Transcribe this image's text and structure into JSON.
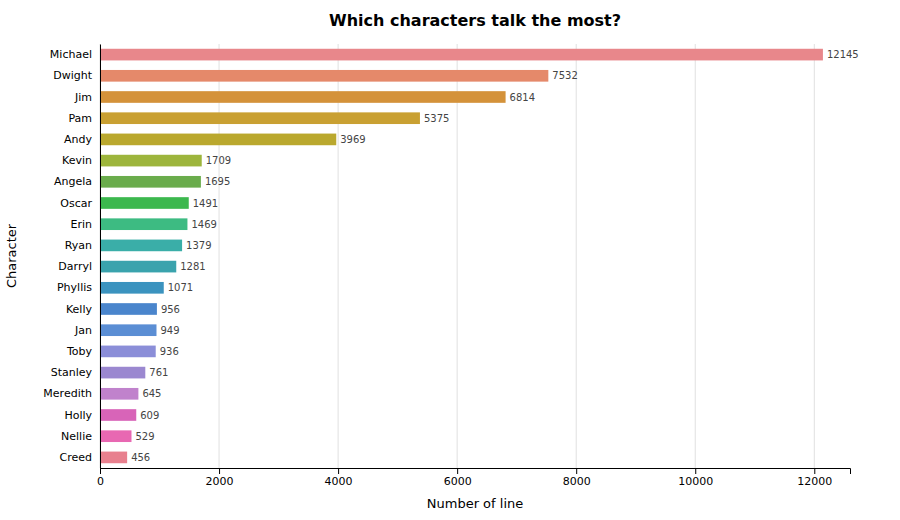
{
  "chart_data": {
    "type": "bar",
    "orientation": "horizontal",
    "title": "Which characters talk the most?",
    "xlabel": "Number of line",
    "ylabel": "Character",
    "categories": [
      "Michael",
      "Dwight",
      "Jim",
      "Pam",
      "Andy",
      "Kevin",
      "Angela",
      "Oscar",
      "Erin",
      "Ryan",
      "Darryl",
      "Phyllis",
      "Kelly",
      "Jan",
      "Toby",
      "Stanley",
      "Meredith",
      "Holly",
      "Nellie",
      "Creed"
    ],
    "values": [
      12145,
      7532,
      6814,
      5375,
      3969,
      1709,
      1695,
      1491,
      1469,
      1379,
      1281,
      1071,
      956,
      949,
      936,
      761,
      645,
      609,
      529,
      456
    ],
    "colors": [
      "#E8878B",
      "#E5896A",
      "#D4923A",
      "#C9A032",
      "#BAA82E",
      "#9DB53C",
      "#6AAC4C",
      "#3CB84E",
      "#3DBB82",
      "#3AAEA8",
      "#3AA3AD",
      "#3B93BF",
      "#4A85CC",
      "#5B8ED4",
      "#8B8ED8",
      "#9B88D0",
      "#C082CC",
      "#D864B8",
      "#E868B2",
      "#E8808E"
    ],
    "xlim": [
      0,
      12600
    ],
    "xticks": [
      0,
      2000,
      4000,
      6000,
      8000,
      10000,
      12000
    ],
    "grid": true,
    "data_labels": true
  }
}
